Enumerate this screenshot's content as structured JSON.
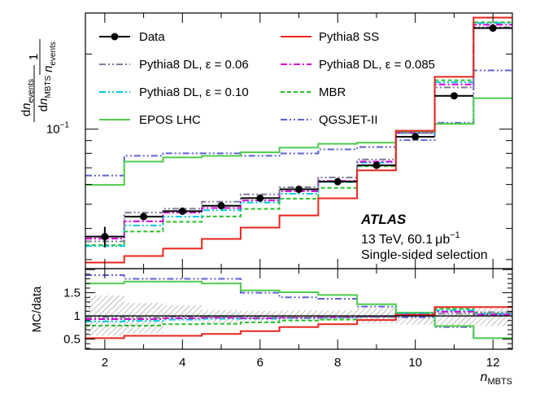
{
  "chart_data": {
    "type": "step-histogram-with-ratio",
    "x": [
      2,
      3,
      4,
      5,
      6,
      7,
      8,
      9,
      10,
      11,
      12
    ],
    "xlabel": "n",
    "xlabel_sub": "MBTS",
    "xlim": [
      1.5,
      12.5
    ],
    "top_panel": {
      "scale": "log",
      "ylim": [
        0.0276,
        0.292
      ],
      "ylabel": {
        "lead": "1",
        "denom_main": "n",
        "denom_sub": "events",
        "num_d": "d",
        "num_n": "n",
        "num_sub": "events",
        "den_d": "d",
        "den_n": "n",
        "den_sub": "MBTS"
      },
      "tick_labels": [
        {
          "value": 0.1,
          "base": "10",
          "exp": "−1"
        }
      ],
      "data": {
        "name": "Data",
        "values": [
          0.0371,
          0.0446,
          0.0469,
          0.0493,
          0.0529,
          0.0574,
          0.0616,
          0.0716,
          0.0932,
          0.136,
          0.254
        ],
        "xerr": 0.5,
        "yerr_low": [
          0.0035,
          0.0012,
          0.001,
          0.001,
          0.001,
          0.001,
          0.001,
          0.001,
          0.0015,
          0.002,
          0.004
        ],
        "yerr_high": [
          0.0035,
          0.0012,
          0.001,
          0.001,
          0.001,
          0.001,
          0.001,
          0.001,
          0.0015,
          0.002,
          0.004
        ]
      },
      "series": [
        {
          "name": "Pythia8 SS",
          "color": "#e8261e",
          "dash": "solid",
          "values": [
            0.0292,
            0.031,
            0.0332,
            0.0363,
            0.0403,
            0.0451,
            0.0528,
            0.0684,
            0.0985,
            0.162,
            0.28
          ]
        },
        {
          "name": "Pythia8 DL, ε = 0.06",
          "color": "#7e7e9a",
          "dash": "dashdotdot",
          "values": [
            0.0355,
            0.0463,
            0.048,
            0.0512,
            0.0548,
            0.0585,
            0.064,
            0.0756,
            0.0967,
            0.147,
            0.256
          ]
        },
        {
          "name": "Pythia8 DL, ε = 0.085",
          "color": "#d600d6",
          "dash": "dashdot",
          "values": [
            0.0364,
            0.0427,
            0.0463,
            0.0483,
            0.0518,
            0.0564,
            0.062,
            0.0741,
            0.0967,
            0.151,
            0.262
          ]
        },
        {
          "name": "Pythia8 DL, ε = 0.10",
          "color": "#00c8e0",
          "dash": "dashdotdot",
          "values": [
            0.034,
            0.0411,
            0.0446,
            0.0473,
            0.0508,
            0.0551,
            0.0614,
            0.0734,
            0.0965,
            0.154,
            0.266
          ]
        },
        {
          "name": "MBR",
          "color": "#2bbf2b",
          "dash": "dash",
          "values": [
            0.0343,
            0.0389,
            0.0425,
            0.0447,
            0.0479,
            0.0526,
            0.0582,
            0.071,
            0.0964,
            0.157,
            0.268
          ]
        },
        {
          "name": "EPOS LHC",
          "color": "#4ecc4e",
          "dash": "solid",
          "values": [
            0.0598,
            0.0741,
            0.077,
            0.0781,
            0.0807,
            0.0843,
            0.0874,
            0.0883,
            0.0973,
            0.105,
            0.133
          ]
        },
        {
          "name": "QGSJET-II",
          "color": "#6060d8",
          "dash": "dashdotdot",
          "values": [
            0.0652,
            0.0782,
            0.08,
            0.08,
            0.0782,
            0.0799,
            0.083,
            0.0848,
            0.0904,
            0.106,
            0.172
          ]
        }
      ]
    },
    "bottom_panel": {
      "ylabel": "MC/data",
      "ylim": [
        0.28,
        2.02
      ],
      "yticks": [
        0.5,
        1,
        1.5
      ],
      "ytick_labels": [
        "0.5",
        "1",
        "1.5"
      ],
      "reference_line": 1.0,
      "uncertainty_band": {
        "low": [
          0.57,
          0.62,
          0.9,
          0.85,
          0.89,
          0.9,
          0.9,
          0.84,
          0.81,
          0.8,
          0.78
        ],
        "high": [
          1.44,
          1.28,
          1.23,
          1.13,
          1.11,
          1.12,
          1.12,
          1.17,
          1.08,
          1.1,
          1.17
        ]
      },
      "series": [
        {
          "name": "Pythia8 SS",
          "values": [
            0.52,
            0.57,
            0.57,
            0.61,
            0.67,
            0.76,
            0.82,
            0.91,
            1.02,
            1.19,
            1.19
          ]
        },
        {
          "name": "Pythia8 DL, ε = 0.06",
          "values": [
            0.97,
            0.96,
            0.98,
            0.98,
            0.97,
            0.97,
            0.97,
            0.97,
            1.01,
            1.05,
            1.08
          ]
        },
        {
          "name": "Pythia8 DL, ε = 0.085",
          "values": [
            0.93,
            0.93,
            0.95,
            0.96,
            0.95,
            0.96,
            0.97,
            0.99,
            1.03,
            1.09,
            1.03
          ]
        },
        {
          "name": "Pythia8 DL, ε = 0.10",
          "values": [
            0.88,
            0.89,
            0.92,
            0.94,
            0.94,
            0.95,
            0.96,
            0.99,
            1.05,
            1.12,
            1.04
          ]
        },
        {
          "name": "MBR",
          "values": [
            0.79,
            0.79,
            0.82,
            0.83,
            0.86,
            0.9,
            0.92,
            0.98,
            1.04,
            1.15,
            1.05
          ]
        },
        {
          "name": "EPOS LHC",
          "values": [
            1.7,
            1.74,
            1.74,
            1.7,
            1.55,
            1.51,
            1.45,
            1.25,
            1.07,
            0.78,
            0.52
          ]
        },
        {
          "name": "QGSJET-II",
          "values": [
            1.88,
            1.8,
            1.8,
            1.8,
            1.5,
            1.4,
            1.37,
            1.2,
            0.97,
            0.76,
            0.52
          ]
        }
      ]
    },
    "annotations": {
      "experiment": "ATLAS",
      "energy_pre": "13 TeV, 60.1",
      "lumi_unit": "μb",
      "lumi_exp": "−1",
      "selection": "Single-sided selection"
    },
    "legend_position": "top-left, two columns"
  }
}
